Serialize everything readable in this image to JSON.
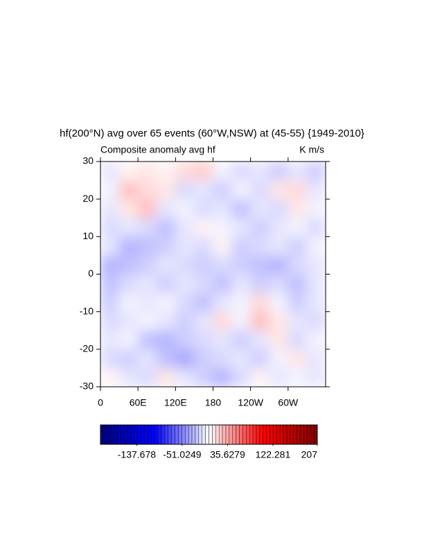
{
  "chart_data": {
    "type": "heatmap",
    "title": "hf(200°N) avg over 65 events (60°W,NSW) at (45-55) {1949-2010}",
    "left_subtitle": "Composite anomaly avg hf",
    "right_subtitle": "K m/s",
    "x": [
      15,
      45,
      75,
      105,
      135,
      165,
      195,
      225,
      255,
      285,
      315,
      345
    ],
    "y": [
      -27.5,
      -22.5,
      -17.5,
      -12.5,
      -7.5,
      -2.5,
      2.5,
      7.5,
      12.5,
      17.5,
      22.5,
      27.5
    ],
    "z": [
      [
        5,
        -10,
        -15,
        10,
        -10,
        -20,
        -30,
        -15,
        5,
        -10,
        -5,
        -10
      ],
      [
        -15,
        -20,
        -10,
        -25,
        -35,
        -20,
        -15,
        -10,
        -20,
        -5,
        10,
        -10
      ],
      [
        -10,
        -5,
        -25,
        -30,
        -20,
        -15,
        -10,
        -20,
        -10,
        10,
        -15,
        -5
      ],
      [
        -15,
        -10,
        -5,
        -10,
        -20,
        -10,
        15,
        -5,
        25,
        10,
        -10,
        -15
      ],
      [
        -20,
        -5,
        -10,
        -5,
        -15,
        -25,
        -10,
        -5,
        15,
        -5,
        -20,
        -10
      ],
      [
        -25,
        -15,
        -10,
        -20,
        -10,
        -15,
        -25,
        -10,
        -20,
        -15,
        -25,
        -10
      ],
      [
        -30,
        -25,
        -20,
        -10,
        -15,
        -20,
        -15,
        -20,
        -25,
        -30,
        -15,
        -10
      ],
      [
        -10,
        -30,
        -25,
        -20,
        -10,
        -15,
        5,
        -20,
        -15,
        -10,
        -20,
        -5
      ],
      [
        -15,
        -10,
        -15,
        -25,
        -10,
        5,
        -5,
        -10,
        -20,
        -10,
        -5,
        -15
      ],
      [
        -10,
        10,
        25,
        -10,
        -5,
        -15,
        -10,
        -25,
        -10,
        -15,
        10,
        -5
      ],
      [
        -5,
        25,
        15,
        10,
        -15,
        -10,
        -20,
        -5,
        -15,
        10,
        15,
        -10
      ],
      [
        -10,
        5,
        10,
        5,
        15,
        20,
        -5,
        -15,
        -10,
        -20,
        -10,
        -20
      ]
    ],
    "xlim": [
      0,
      360
    ],
    "xticks": [
      0,
      {
        "value": 60,
        "label": "60E"
      },
      {
        "value": 120,
        "label": "120E"
      },
      180,
      {
        "value": 240,
        "label": "120W"
      },
      {
        "value": 300,
        "label": "60W"
      }
    ],
    "ylim": [
      -30,
      30
    ],
    "yticks": [
      -30,
      -20,
      -10,
      0,
      10,
      20,
      30
    ],
    "colormap": [
      "#00007f",
      "#0000ff",
      "#ffffff",
      "#ff0000",
      "#7f0000"
    ],
    "clim": [
      -207,
      207
    ],
    "colorbar_ticks": [
      -137.678,
      -51.0249,
      35.6279,
      122.281,
      207
    ]
  }
}
